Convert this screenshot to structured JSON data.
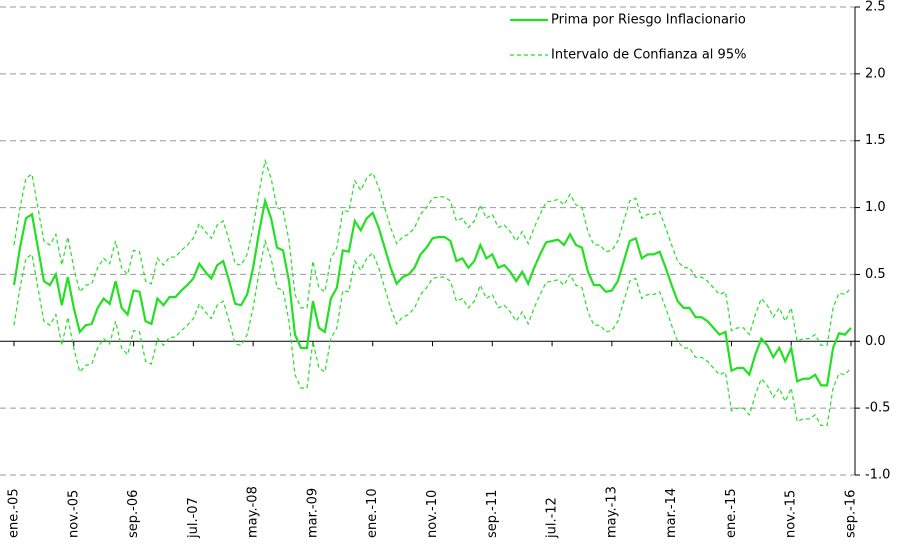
{
  "chart_data": {
    "type": "line",
    "categories": [
      "ene.-05",
      null,
      null,
      null,
      null,
      null,
      null,
      null,
      null,
      null,
      "nov.-05",
      null,
      null,
      null,
      null,
      null,
      null,
      null,
      null,
      null,
      "sep.-06",
      null,
      null,
      null,
      null,
      null,
      null,
      null,
      null,
      null,
      "jul.-07",
      null,
      null,
      null,
      null,
      null,
      null,
      null,
      null,
      null,
      "may.-08",
      null,
      null,
      null,
      null,
      null,
      null,
      null,
      null,
      null,
      "mar.-09",
      null,
      null,
      null,
      null,
      null,
      null,
      null,
      null,
      null,
      "ene.-10",
      null,
      null,
      null,
      null,
      null,
      null,
      null,
      null,
      null,
      "nov.-10",
      null,
      null,
      null,
      null,
      null,
      null,
      null,
      null,
      null,
      "sep.-11",
      null,
      null,
      null,
      null,
      null,
      null,
      null,
      null,
      null,
      "jul.-12",
      null,
      null,
      null,
      null,
      null,
      null,
      null,
      null,
      null,
      "may.-13",
      null,
      null,
      null,
      null,
      null,
      null,
      null,
      null,
      null,
      "mar.-14",
      null,
      null,
      null,
      null,
      null,
      null,
      null,
      null,
      null,
      "ene.-15",
      null,
      null,
      null,
      null,
      null,
      null,
      null,
      null,
      null,
      "nov.-15",
      null,
      null,
      null,
      null,
      null,
      null,
      null,
      null,
      null,
      "sep.-16"
    ],
    "series": [
      {
        "name": "Prima por Riesgo Inflacionario",
        "color": "#22e022",
        "line_style": "solid",
        "values": [
          0.42,
          0.7,
          0.92,
          0.95,
          0.7,
          0.45,
          0.42,
          0.5,
          0.27,
          0.48,
          0.25,
          0.07,
          0.12,
          0.13,
          0.25,
          0.32,
          0.28,
          0.45,
          0.25,
          0.2,
          0.38,
          0.37,
          0.15,
          0.13,
          0.32,
          0.27,
          0.33,
          0.33,
          0.38,
          0.42,
          0.47,
          0.58,
          0.52,
          0.47,
          0.57,
          0.6,
          0.45,
          0.28,
          0.27,
          0.35,
          0.55,
          0.82,
          1.05,
          0.92,
          0.7,
          0.68,
          0.45,
          0.05,
          -0.05,
          -0.05,
          0.3,
          0.1,
          0.07,
          0.32,
          0.4,
          0.68,
          0.67,
          0.9,
          0.83,
          0.92,
          0.96,
          0.85,
          0.7,
          0.55,
          0.43,
          0.48,
          0.5,
          0.55,
          0.65,
          0.7,
          0.77,
          0.78,
          0.78,
          0.75,
          0.6,
          0.62,
          0.55,
          0.6,
          0.72,
          0.62,
          0.65,
          0.55,
          0.57,
          0.52,
          0.45,
          0.52,
          0.43,
          0.55,
          0.65,
          0.74,
          0.75,
          0.76,
          0.72,
          0.8,
          0.72,
          0.7,
          0.52,
          0.42,
          0.42,
          0.37,
          0.38,
          0.45,
          0.6,
          0.75,
          0.77,
          0.62,
          0.65,
          0.65,
          0.67,
          0.55,
          0.42,
          0.3,
          0.25,
          0.25,
          0.18,
          0.18,
          0.15,
          0.1,
          0.05,
          0.07,
          -0.22,
          -0.2,
          -0.2,
          -0.25,
          -0.1,
          0.02,
          -0.03,
          -0.12,
          -0.05,
          -0.15,
          -0.05,
          -0.3,
          -0.28,
          -0.28,
          -0.25,
          -0.33,
          -0.33,
          -0.05,
          0.06,
          0.05,
          0.1
        ]
      },
      {
        "name": "Intervalo de Confianza al 95%",
        "color": "#22e022",
        "line_style": "dashed",
        "upper": [
          0.72,
          1.0,
          1.22,
          1.25,
          1.0,
          0.75,
          0.72,
          0.8,
          0.57,
          0.78,
          0.55,
          0.37,
          0.42,
          0.43,
          0.55,
          0.62,
          0.58,
          0.75,
          0.55,
          0.5,
          0.68,
          0.67,
          0.45,
          0.43,
          0.62,
          0.57,
          0.63,
          0.63,
          0.68,
          0.72,
          0.77,
          0.88,
          0.82,
          0.77,
          0.87,
          0.9,
          0.75,
          0.58,
          0.57,
          0.65,
          0.85,
          1.12,
          1.35,
          1.22,
          1.0,
          0.98,
          0.75,
          0.35,
          0.25,
          0.25,
          0.6,
          0.4,
          0.37,
          0.62,
          0.7,
          0.98,
          0.97,
          1.2,
          1.13,
          1.22,
          1.26,
          1.15,
          1.0,
          0.85,
          0.73,
          0.78,
          0.8,
          0.85,
          0.95,
          1.0,
          1.07,
          1.08,
          1.08,
          1.05,
          0.9,
          0.92,
          0.85,
          0.9,
          1.02,
          0.92,
          0.95,
          0.85,
          0.87,
          0.82,
          0.75,
          0.82,
          0.73,
          0.85,
          0.95,
          1.04,
          1.05,
          1.06,
          1.02,
          1.1,
          1.02,
          1.0,
          0.82,
          0.72,
          0.72,
          0.67,
          0.68,
          0.75,
          0.9,
          1.05,
          1.07,
          0.92,
          0.95,
          0.95,
          0.97,
          0.85,
          0.72,
          0.6,
          0.55,
          0.55,
          0.48,
          0.48,
          0.45,
          0.4,
          0.35,
          0.37,
          0.08,
          0.1,
          0.1,
          0.05,
          0.2,
          0.32,
          0.27,
          0.18,
          0.25,
          0.15,
          0.25,
          0.0,
          0.02,
          0.02,
          0.05,
          -0.03,
          -0.03,
          0.25,
          0.36,
          0.35,
          0.4
        ],
        "lower": [
          0.12,
          0.4,
          0.62,
          0.65,
          0.4,
          0.15,
          0.12,
          0.2,
          -0.03,
          0.18,
          -0.05,
          -0.23,
          -0.18,
          -0.17,
          -0.05,
          0.02,
          -0.02,
          0.15,
          -0.05,
          -0.1,
          0.08,
          0.07,
          -0.15,
          -0.17,
          0.02,
          -0.03,
          0.03,
          0.03,
          0.08,
          0.12,
          0.17,
          0.28,
          0.22,
          0.17,
          0.27,
          0.3,
          0.15,
          -0.02,
          -0.03,
          0.05,
          0.25,
          0.52,
          0.75,
          0.62,
          0.4,
          0.38,
          0.15,
          -0.25,
          -0.35,
          -0.35,
          0.0,
          -0.2,
          -0.23,
          0.02,
          0.1,
          0.38,
          0.37,
          0.6,
          0.53,
          0.62,
          0.66,
          0.55,
          0.4,
          0.25,
          0.13,
          0.18,
          0.2,
          0.25,
          0.35,
          0.4,
          0.47,
          0.48,
          0.48,
          0.45,
          0.3,
          0.32,
          0.25,
          0.3,
          0.42,
          0.32,
          0.35,
          0.25,
          0.27,
          0.22,
          0.15,
          0.22,
          0.13,
          0.25,
          0.35,
          0.44,
          0.45,
          0.46,
          0.42,
          0.5,
          0.42,
          0.4,
          0.22,
          0.12,
          0.12,
          0.07,
          0.08,
          0.15,
          0.3,
          0.45,
          0.47,
          0.32,
          0.35,
          0.35,
          0.37,
          0.25,
          0.12,
          0.0,
          -0.05,
          -0.05,
          -0.12,
          -0.12,
          -0.15,
          -0.2,
          -0.25,
          -0.23,
          -0.52,
          -0.5,
          -0.5,
          -0.55,
          -0.4,
          -0.28,
          -0.33,
          -0.42,
          -0.35,
          -0.45,
          -0.35,
          -0.6,
          -0.58,
          -0.58,
          -0.55,
          -0.63,
          -0.63,
          -0.35,
          -0.24,
          -0.25,
          -0.2
        ]
      }
    ],
    "ylim": [
      -1,
      2.5
    ],
    "yticks": [
      {
        "value": -1,
        "label": "-1.0"
      },
      -0.5,
      {
        "value": 0,
        "label": "0.0"
      },
      0.5,
      {
        "value": 1,
        "label": "1.0"
      },
      1.5,
      {
        "value": 2,
        "label": "2.0"
      },
      2.5
    ],
    "y_axis_side": "right",
    "grid": true,
    "legend": "upper right"
  }
}
